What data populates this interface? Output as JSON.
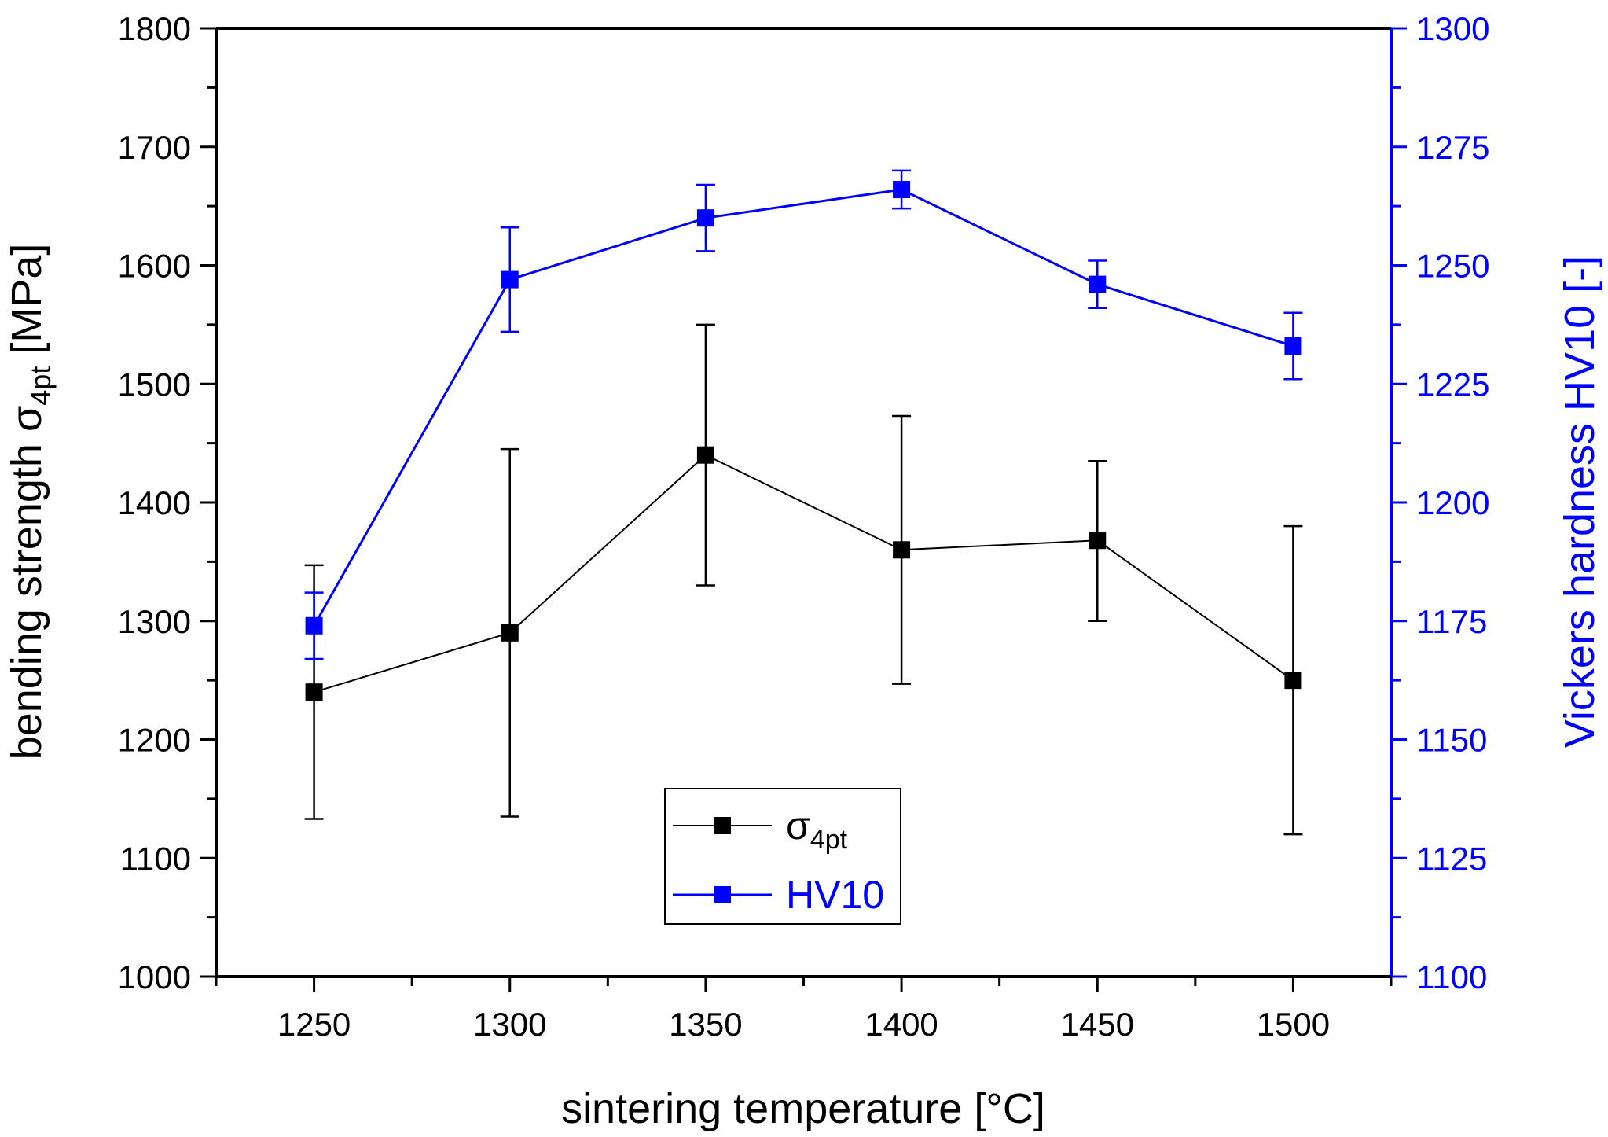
{
  "chart_data": {
    "type": "line",
    "title": "",
    "xlabel": "sintering temperature [°C]",
    "ylabel_main": "bending strength σ",
    "ylabel_sub": "4pt",
    "ylabel_unit": " [MPa]",
    "y2label": "Vickers hardness HV10 [-]",
    "x": [
      1250,
      1300,
      1350,
      1400,
      1450,
      1500
    ],
    "x_ticks": [
      1250,
      1300,
      1350,
      1400,
      1450,
      1500
    ],
    "xlim": [
      1225,
      1525
    ],
    "ylim": [
      1000,
      1800
    ],
    "y_ticks": [
      1000,
      1100,
      1200,
      1300,
      1400,
      1500,
      1600,
      1700,
      1800
    ],
    "y2lim": [
      1100,
      1300
    ],
    "y2_ticks": [
      1100,
      1125,
      1150,
      1175,
      1200,
      1225,
      1250,
      1275,
      1300
    ],
    "series": [
      {
        "name": "σ",
        "name_sub": "4pt",
        "axis": "left",
        "color": "#000000",
        "values": [
          1240,
          1290,
          1440,
          1360,
          1368,
          1250
        ],
        "err_low": [
          1133,
          1135,
          1330,
          1247,
          1300,
          1120
        ],
        "err_high": [
          1347,
          1445,
          1550,
          1473,
          1435,
          1380
        ]
      },
      {
        "name": "HV10",
        "axis": "right",
        "color": "#0000ff",
        "values": [
          1174,
          1247,
          1260,
          1266,
          1246,
          1233
        ],
        "err_low": [
          1167,
          1236,
          1253,
          1262,
          1241,
          1226
        ],
        "err_high": [
          1181,
          1258,
          1267,
          1270,
          1251,
          1240
        ]
      }
    ],
    "legend_position": "bottom-center",
    "grid": false
  }
}
